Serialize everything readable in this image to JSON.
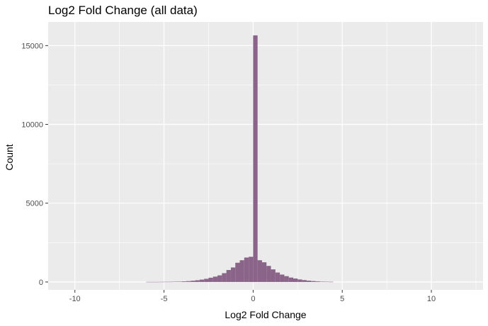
{
  "chart_data": {
    "type": "bar",
    "title": "Log2 Fold Change (all data)",
    "xlabel": "Log2 Fold Change",
    "ylabel": "Count",
    "xlim": [
      -11.5,
      12.9
    ],
    "ylim": [
      -500,
      16500
    ],
    "x_ticks": [
      -10,
      -5,
      0,
      5,
      10
    ],
    "x_tick_labels": [
      "-10",
      "-5",
      "0",
      "5",
      "10"
    ],
    "y_ticks": [
      0,
      5000,
      10000,
      15000
    ],
    "y_tick_labels": [
      "0",
      "5000",
      "10000",
      "15000"
    ],
    "grid": true,
    "bin_width": 0.25,
    "bar_color": "#8B6489",
    "panel_color": "#EBEBEB",
    "gridline_color": "#FFFFFF",
    "bins": [
      {
        "x": -5.75,
        "count": 5
      },
      {
        "x": -5.5,
        "count": 5
      },
      {
        "x": -5.25,
        "count": 5
      },
      {
        "x": -5.0,
        "count": 8
      },
      {
        "x": -4.75,
        "count": 10
      },
      {
        "x": -4.5,
        "count": 12
      },
      {
        "x": -4.25,
        "count": 18
      },
      {
        "x": -4.0,
        "count": 25
      },
      {
        "x": -3.75,
        "count": 40
      },
      {
        "x": -3.5,
        "count": 55
      },
      {
        "x": -3.25,
        "count": 80
      },
      {
        "x": -3.0,
        "count": 110
      },
      {
        "x": -2.75,
        "count": 150
      },
      {
        "x": -2.5,
        "count": 200
      },
      {
        "x": -2.25,
        "count": 270
      },
      {
        "x": -2.0,
        "count": 340
      },
      {
        "x": -1.75,
        "count": 420
      },
      {
        "x": -1.5,
        "count": 560
      },
      {
        "x": -1.25,
        "count": 760
      },
      {
        "x": -1.0,
        "count": 920
      },
      {
        "x": -0.75,
        "count": 1220
      },
      {
        "x": -0.5,
        "count": 1380
      },
      {
        "x": -0.25,
        "count": 1550
      },
      {
        "x": 0.0,
        "count": 1600
      },
      {
        "x": 0.25,
        "count": 15650
      },
      {
        "x": 0.5,
        "count": 1380
      },
      {
        "x": 0.75,
        "count": 1250
      },
      {
        "x": 1.0,
        "count": 1020
      },
      {
        "x": 1.25,
        "count": 800
      },
      {
        "x": 1.5,
        "count": 600
      },
      {
        "x": 1.75,
        "count": 470
      },
      {
        "x": 2.0,
        "count": 370
      },
      {
        "x": 2.25,
        "count": 280
      },
      {
        "x": 2.5,
        "count": 220
      },
      {
        "x": 2.75,
        "count": 160
      },
      {
        "x": 3.0,
        "count": 120
      },
      {
        "x": 3.25,
        "count": 85
      },
      {
        "x": 3.5,
        "count": 60
      },
      {
        "x": 3.75,
        "count": 40
      },
      {
        "x": 4.0,
        "count": 25
      },
      {
        "x": 4.25,
        "count": 15
      },
      {
        "x": 4.5,
        "count": 10
      }
    ]
  }
}
